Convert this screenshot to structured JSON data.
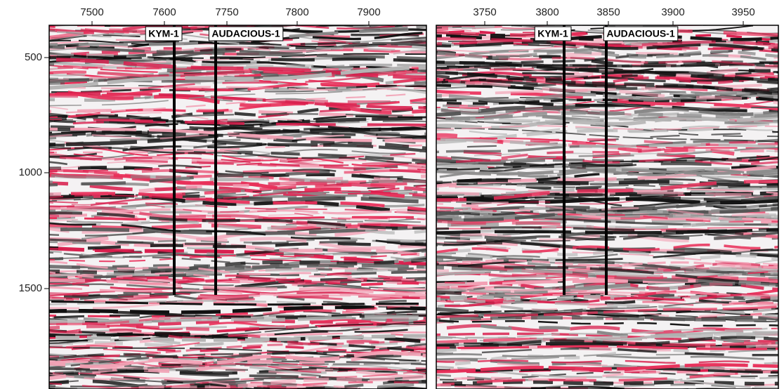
{
  "panels": [
    {
      "xticks": [
        "7500",
        "7600",
        "7750",
        "7800",
        "7900"
      ],
      "yticks": [
        "500",
        "1000",
        "1500"
      ],
      "wells": [
        "KYM-1",
        "AUDACIOUS-1"
      ]
    },
    {
      "xticks": [
        "3750",
        "3800",
        "3850",
        "3900",
        "3950"
      ],
      "wells": [
        "KYM-1",
        "AUDACIOUS-1"
      ]
    }
  ]
}
